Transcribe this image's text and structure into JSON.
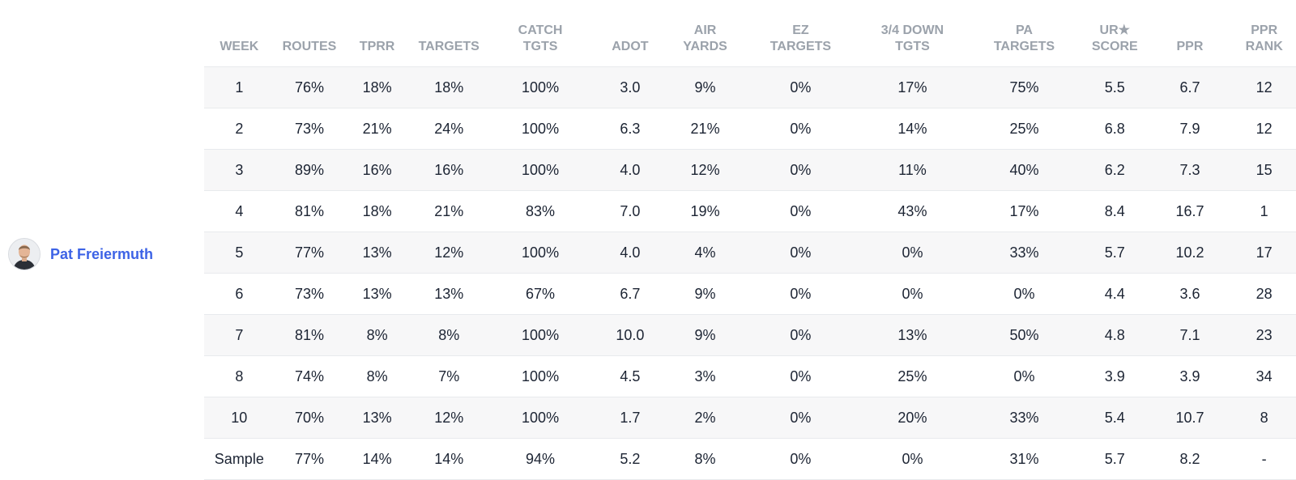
{
  "player": {
    "name": "Pat Freiermuth",
    "avatar_icon": "player-headshot-icon"
  },
  "columns": [
    [
      "WEEK"
    ],
    [
      "ROUTES"
    ],
    [
      "TPRR"
    ],
    [
      "TARGETS"
    ],
    [
      "CATCH",
      "TGTS"
    ],
    [
      "ADOT"
    ],
    [
      "AIR",
      "YARDS"
    ],
    [
      "EZ",
      "TARGETS"
    ],
    [
      "3/4 DOWN",
      "TGTS"
    ],
    [
      "PA",
      "TARGETS"
    ],
    [
      "UR★",
      "SCORE"
    ],
    [
      "PPR"
    ],
    [
      "PPR",
      "RANK"
    ]
  ],
  "rows": [
    [
      "1",
      "76%",
      "18%",
      "18%",
      "100%",
      "3.0",
      "9%",
      "0%",
      "17%",
      "75%",
      "5.5",
      "6.7",
      "12"
    ],
    [
      "2",
      "73%",
      "21%",
      "24%",
      "100%",
      "6.3",
      "21%",
      "0%",
      "14%",
      "25%",
      "6.8",
      "7.9",
      "12"
    ],
    [
      "3",
      "89%",
      "16%",
      "16%",
      "100%",
      "4.0",
      "12%",
      "0%",
      "11%",
      "40%",
      "6.2",
      "7.3",
      "15"
    ],
    [
      "4",
      "81%",
      "18%",
      "21%",
      "83%",
      "7.0",
      "19%",
      "0%",
      "43%",
      "17%",
      "8.4",
      "16.7",
      "1"
    ],
    [
      "5",
      "77%",
      "13%",
      "12%",
      "100%",
      "4.0",
      "4%",
      "0%",
      "0%",
      "33%",
      "5.7",
      "10.2",
      "17"
    ],
    [
      "6",
      "73%",
      "13%",
      "13%",
      "67%",
      "6.7",
      "9%",
      "0%",
      "0%",
      "0%",
      "4.4",
      "3.6",
      "28"
    ],
    [
      "7",
      "81%",
      "8%",
      "8%",
      "100%",
      "10.0",
      "9%",
      "0%",
      "13%",
      "50%",
      "4.8",
      "7.1",
      "23"
    ],
    [
      "8",
      "74%",
      "8%",
      "7%",
      "100%",
      "4.5",
      "3%",
      "0%",
      "25%",
      "0%",
      "3.9",
      "3.9",
      "34"
    ],
    [
      "10",
      "70%",
      "13%",
      "12%",
      "100%",
      "1.7",
      "2%",
      "0%",
      "20%",
      "33%",
      "5.4",
      "10.7",
      "8"
    ],
    [
      "Sample",
      "77%",
      "14%",
      "14%",
      "94%",
      "5.2",
      "8%",
      "0%",
      "0%",
      "31%",
      "5.7",
      "8.2",
      "-"
    ]
  ],
  "colors": {
    "player_link": "#3d63e6",
    "header_text": "#9ba2ab",
    "cell_text": "#1c2433",
    "row_stripe": "#f7f7f8",
    "row_border": "#e8eaed"
  }
}
